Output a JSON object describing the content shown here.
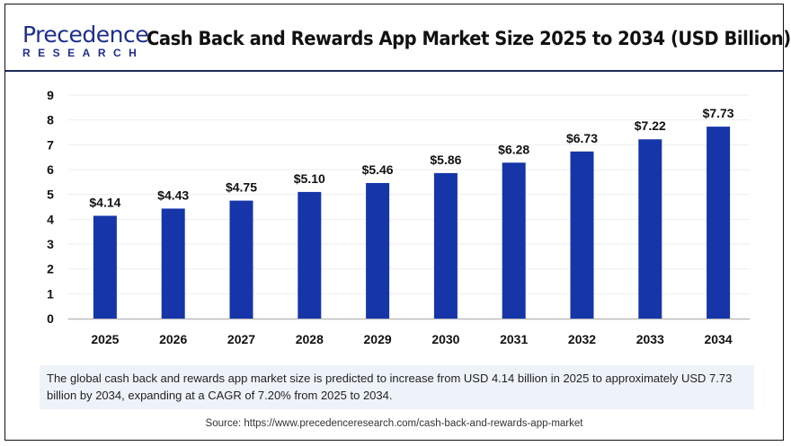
{
  "header": {
    "logo_main": "Precedence",
    "logo_sub": "RESEARCH",
    "title": "Cash Back and Rewards App Market Size 2025 to 2034 (USD Billion)"
  },
  "chart_data": {
    "type": "bar",
    "title": "Cash Back and Rewards App Market Size 2025 to 2034 (USD Billion)",
    "categories": [
      "2025",
      "2026",
      "2027",
      "2028",
      "2029",
      "2030",
      "2031",
      "2032",
      "2033",
      "2034"
    ],
    "values": [
      4.14,
      4.43,
      4.75,
      5.1,
      5.46,
      5.86,
      6.28,
      6.73,
      7.22,
      7.73
    ],
    "data_labels": [
      "$4.14",
      "$4.43",
      "$4.75",
      "$5.10",
      "$5.46",
      "$5.86",
      "$6.28",
      "$6.73",
      "$7.22",
      "$7.73"
    ],
    "yticks": [
      "0",
      "1",
      "2",
      "3",
      "4",
      "5",
      "6",
      "7",
      "8",
      "9"
    ],
    "ylim": [
      0,
      9
    ],
    "grid": true,
    "bar_color": "#1535a8"
  },
  "summary": "The global cash back and rewards app market size is predicted to increase from USD 4.14 billion in 2025 to approximately USD 7.73 billion by 2034, expanding at a CAGR of 7.20% from 2025 to 2034.",
  "source": "Source: https://www.precedenceresearch.com/cash-back-and-rewards-app-market"
}
